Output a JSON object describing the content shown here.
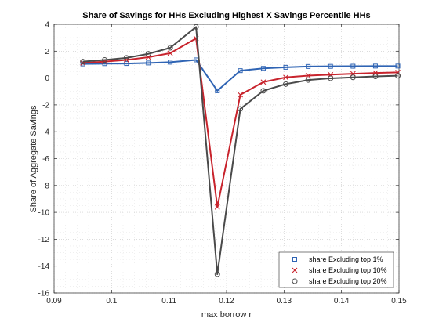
{
  "chart_data": {
    "type": "line",
    "title": "Share of Savings for HHs Excluding Highest X Savings Percentile HHs",
    "xlabel": "max borrow r",
    "ylabel": "Share of Aggregate Savings",
    "xlim": [
      0.09,
      0.15
    ],
    "ylim": [
      -16,
      4
    ],
    "xticks": [
      0.09,
      0.1,
      0.11,
      0.12,
      0.13,
      0.14,
      0.15
    ],
    "xtick_labels": [
      "0.09",
      "0.1",
      "0.11",
      "0.12",
      "0.13",
      "0.14",
      "0.15"
    ],
    "yticks": [
      -16,
      -14,
      -12,
      -10,
      -8,
      -6,
      -4,
      -2,
      0,
      2,
      4
    ],
    "ytick_labels": [
      "-16",
      "-14",
      "-12",
      "-10",
      "-8",
      "-6",
      "-4",
      "-2",
      "0",
      "2",
      "4"
    ],
    "grid": "dotted major and minor",
    "legend_position": "bottom-right",
    "x": [
      0.095,
      0.0988,
      0.1026,
      0.1064,
      0.1102,
      0.1147,
      0.1184,
      0.1224,
      0.1264,
      0.1303,
      0.1342,
      0.1381,
      0.142,
      0.1459,
      0.1498
    ],
    "series": [
      {
        "name": "share Excluding top 1%",
        "marker": "square",
        "color": "#2f64b4",
        "values": [
          1.05,
          1.07,
          1.08,
          1.12,
          1.18,
          1.35,
          -0.95,
          0.55,
          0.72,
          0.8,
          0.86,
          0.87,
          0.88,
          0.89,
          0.89
        ]
      },
      {
        "name": "share Excluding top 10%",
        "marker": "x",
        "color": "#c8232c",
        "values": [
          1.12,
          1.22,
          1.35,
          1.55,
          1.85,
          2.95,
          -9.6,
          -1.25,
          -0.3,
          0.05,
          0.18,
          0.25,
          0.32,
          0.38,
          0.42
        ]
      },
      {
        "name": "share Excluding top 20%",
        "marker": "circle",
        "color": "#4a4a4a",
        "values": [
          1.22,
          1.35,
          1.5,
          1.8,
          2.25,
          3.8,
          -14.6,
          -2.3,
          -0.95,
          -0.45,
          -0.15,
          -0.02,
          0.05,
          0.12,
          0.17
        ]
      }
    ]
  }
}
